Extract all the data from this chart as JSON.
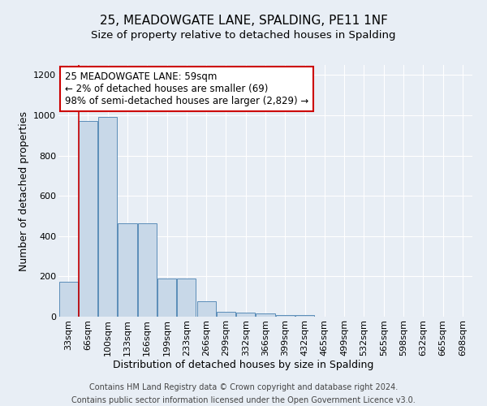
{
  "title": "25, MEADOWGATE LANE, SPALDING, PE11 1NF",
  "subtitle": "Size of property relative to detached houses in Spalding",
  "xlabel": "Distribution of detached houses by size in Spalding",
  "ylabel": "Number of detached properties",
  "footnote1": "Contains HM Land Registry data © Crown copyright and database right 2024.",
  "footnote2": "Contains public sector information licensed under the Open Government Licence v3.0.",
  "bar_labels": [
    "33sqm",
    "66sqm",
    "100sqm",
    "133sqm",
    "166sqm",
    "199sqm",
    "233sqm",
    "266sqm",
    "299sqm",
    "332sqm",
    "366sqm",
    "399sqm",
    "432sqm",
    "465sqm",
    "499sqm",
    "532sqm",
    "565sqm",
    "598sqm",
    "632sqm",
    "665sqm",
    "698sqm"
  ],
  "bar_values": [
    175,
    970,
    990,
    465,
    465,
    190,
    190,
    75,
    25,
    20,
    15,
    10,
    10,
    0,
    0,
    0,
    0,
    0,
    0,
    0,
    0
  ],
  "bar_color": "#c8d8e8",
  "bar_edge_color": "#5b8db8",
  "background_color": "#e8eef5",
  "grid_color": "#ffffff",
  "red_line_x": 0.545,
  "annotation_text": "25 MEADOWGATE LANE: 59sqm\n← 2% of detached houses are smaller (69)\n98% of semi-detached houses are larger (2,829) →",
  "annotation_box_color": "#ffffff",
  "annotation_border_color": "#cc0000",
  "ylim": [
    0,
    1250
  ],
  "yticks": [
    0,
    200,
    400,
    600,
    800,
    1000,
    1200
  ],
  "title_fontsize": 11,
  "subtitle_fontsize": 9.5,
  "axis_label_fontsize": 9,
  "tick_fontsize": 8,
  "annotation_fontsize": 8.5,
  "footnote_fontsize": 7
}
